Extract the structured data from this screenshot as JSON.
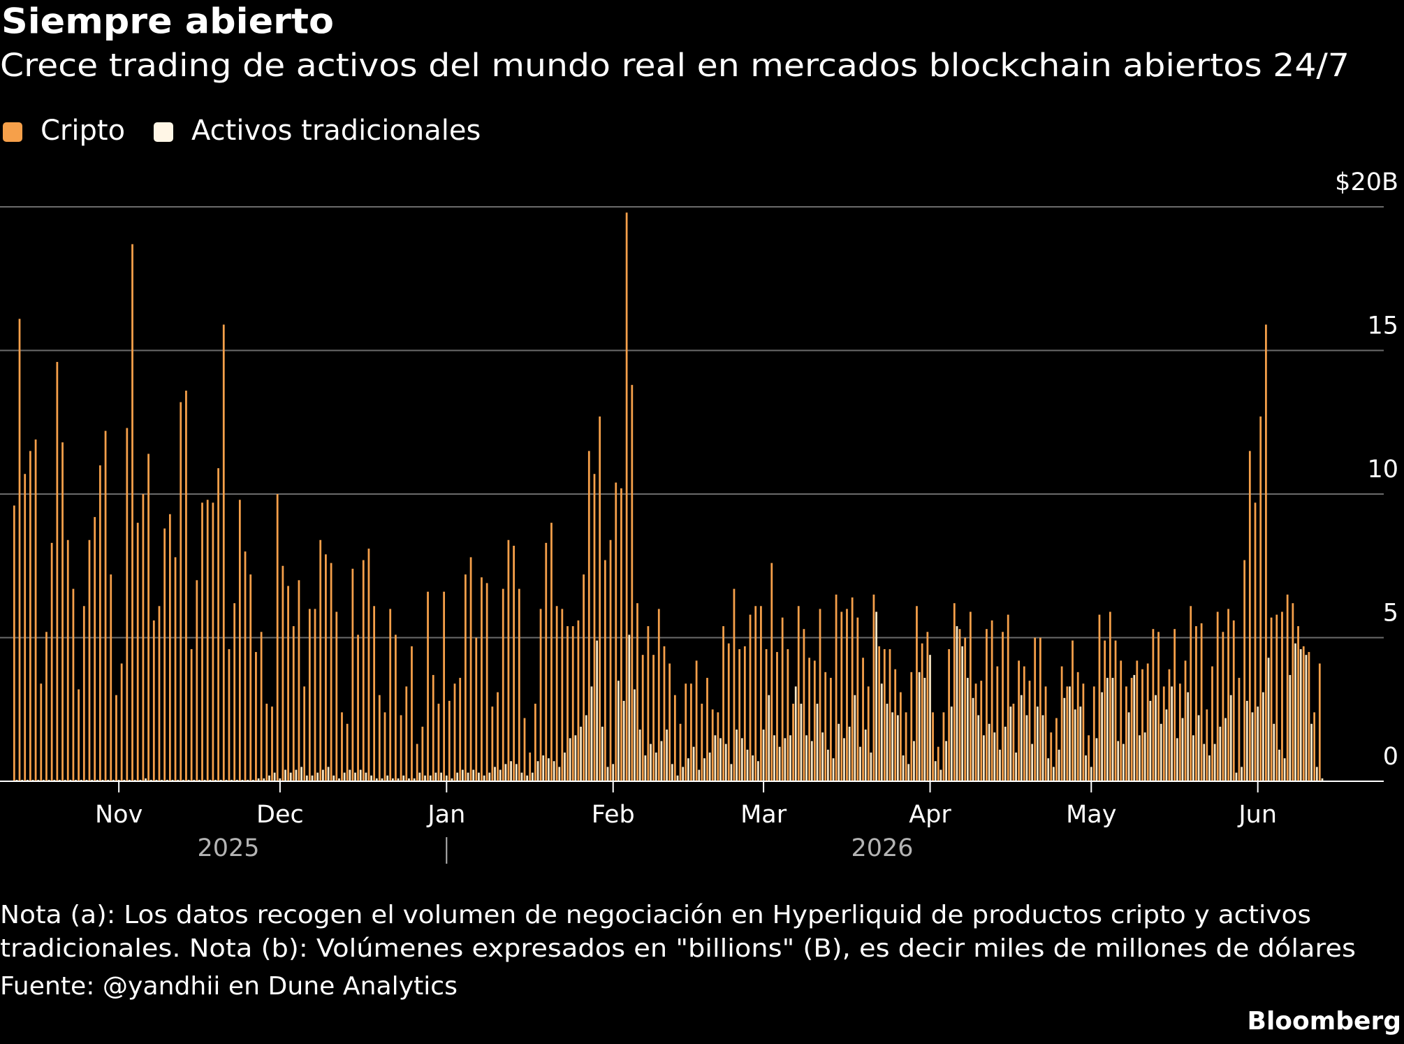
{
  "chart_data": {
    "type": "grouped_bar",
    "title": "Siempre abierto",
    "subtitle": "Crece trading de activos del mundo real en mercados blockchain abiertos 24/7",
    "notes": [
      "Nota (a): Los datos recogen el volumen de negociación en Hyperliquid de productos cripto y activos",
      "tradicionales. Nota (b): Volúmenes expresados en \"billions\" (B), es decir miles de millones de dólares"
    ],
    "source": "Fuente: @yandhii en Dune Analytics",
    "brand": "Bloomberg",
    "year_labels": [
      "2025",
      "2026"
    ],
    "categories": [
      null,
      null,
      null,
      null,
      null,
      null,
      null,
      null,
      null,
      null,
      null,
      null,
      null,
      null,
      null,
      null,
      null,
      null,
      null,
      null,
      null,
      null,
      null,
      null,
      null,
      null,
      null,
      null,
      null,
      null,
      null,
      null,
      null,
      null,
      null,
      null,
      null,
      null,
      null,
      null,
      null,
      null,
      null,
      null,
      null,
      null,
      null,
      null,
      null,
      null,
      null,
      null,
      null,
      null,
      null,
      null,
      null,
      null,
      null,
      null,
      null,
      null,
      null,
      null,
      null,
      null,
      null,
      null,
      null,
      null,
      null,
      null,
      null,
      null,
      null,
      null,
      null,
      null,
      null,
      null,
      null,
      null,
      null,
      null,
      null,
      null,
      null,
      null,
      null,
      null,
      null,
      null,
      null,
      null,
      null,
      null,
      null,
      null,
      null,
      null,
      null,
      null,
      null,
      null,
      null,
      null,
      null,
      null,
      null,
      null,
      null,
      null,
      null,
      null,
      null,
      null,
      null,
      null,
      null,
      null,
      null,
      null,
      null,
      null,
      null,
      null,
      null,
      null,
      null,
      null,
      null,
      null,
      null,
      null,
      null,
      null,
      null,
      null,
      null,
      null,
      null,
      null,
      null,
      null,
      null,
      null,
      null,
      null,
      null,
      null,
      null,
      null,
      null,
      null,
      null,
      null,
      null,
      null,
      null,
      null,
      null,
      null,
      null,
      null,
      null,
      null,
      null,
      null,
      null,
      null,
      null,
      null,
      null,
      null,
      null,
      null,
      null,
      null,
      null,
      null,
      null,
      null,
      null,
      null,
      null,
      null,
      null,
      null,
      null,
      null,
      null,
      null,
      null,
      null,
      null,
      null,
      null,
      null,
      null,
      null,
      null,
      null,
      null,
      null,
      null,
      null,
      null,
      null,
      null,
      null,
      null,
      null,
      null,
      null,
      null,
      null,
      null,
      null,
      null,
      null,
      null,
      null,
      null,
      null,
      null,
      null,
      null,
      null,
      null,
      null,
      null,
      null,
      null,
      null,
      null,
      null,
      null,
      null,
      null,
      null,
      null,
      null,
      null,
      null
    ],
    "xticks": [
      {
        "value": 19,
        "label": "Nov"
      },
      {
        "value": 49,
        "label": "Dec"
      },
      {
        "value": 80,
        "label": "Jan"
      },
      {
        "value": 111,
        "label": "Feb"
      },
      {
        "value": 139,
        "label": "Mar"
      },
      {
        "value": 170,
        "label": "Apr"
      },
      {
        "value": 200,
        "label": "May"
      },
      {
        "value": 231,
        "label": "Jun"
      }
    ],
    "ylim": [
      0,
      20
    ],
    "yticks": [
      0,
      5,
      10,
      15,
      {
        "value": 20,
        "label": "$20B"
      }
    ],
    "grid": true,
    "legend": "top-left",
    "series": [
      {
        "name": "Cripto",
        "color": "#f6a04a",
        "values": [
          9.6,
          16.1,
          10.7,
          11.5,
          11.9,
          3.4,
          5.2,
          8.3,
          14.6,
          11.8,
          8.4,
          6.7,
          3.2,
          6.1,
          8.4,
          9.2,
          11.0,
          12.2,
          7.2,
          3.0,
          4.1,
          12.3,
          18.7,
          9.0,
          10.0,
          11.4,
          5.6,
          6.1,
          8.8,
          9.3,
          7.8,
          13.2,
          13.6,
          4.6,
          7.0,
          9.7,
          9.8,
          9.7,
          10.9,
          15.9,
          4.6,
          6.2,
          9.8,
          8.0,
          7.2,
          4.5,
          5.2,
          2.7,
          2.6,
          10.0,
          7.5,
          6.8,
          5.4,
          7.0,
          3.3,
          6.0,
          6.0,
          8.4,
          7.9,
          7.6,
          5.9,
          2.4,
          2.0,
          7.4,
          5.1,
          7.7,
          8.1,
          6.1,
          3.0,
          2.4,
          6.0,
          5.1,
          2.3,
          3.3,
          4.7,
          1.3,
          1.9,
          6.6,
          3.7,
          2.7,
          6.6,
          2.8,
          3.4,
          3.6,
          7.2,
          7.8,
          5.0,
          7.1,
          6.9,
          2.6,
          3.1,
          6.7,
          8.4,
          8.2,
          6.7,
          2.2,
          1.0,
          2.7,
          6.0,
          8.3,
          9.0,
          6.1,
          6.0,
          5.4,
          5.4,
          5.6,
          7.2,
          11.5,
          10.7,
          12.7,
          7.7,
          8.4,
          10.4,
          10.2,
          19.8,
          13.8,
          6.2,
          4.4,
          5.4,
          4.4,
          6.0,
          4.7,
          4.1,
          3.0,
          2.0,
          3.4,
          3.4,
          4.2,
          2.7,
          3.6,
          2.5,
          2.4,
          5.4,
          4.8,
          6.7,
          4.6,
          4.7,
          5.8,
          6.1,
          6.1,
          4.6,
          7.6,
          4.5,
          5.7,
          4.6,
          2.7,
          6.1,
          5.3,
          4.3,
          4.2,
          6.0,
          3.8,
          3.6,
          6.5,
          5.9,
          6.0,
          6.4,
          5.7,
          4.3,
          3.3,
          6.5,
          4.7,
          4.6,
          4.6,
          3.9,
          3.1,
          2.4,
          3.8,
          6.1,
          4.8,
          5.2,
          2.4,
          1.2,
          2.4,
          4.6,
          6.2,
          5.3,
          5.0,
          5.9,
          3.4,
          3.5,
          5.3,
          5.6,
          4.0,
          5.2,
          5.8,
          2.7,
          4.2,
          4.0,
          3.5,
          5.0,
          5.0,
          3.3,
          1.7,
          2.2,
          4.0,
          3.3,
          4.9,
          3.8,
          3.4,
          1.6,
          3.3,
          5.8,
          4.9,
          5.9,
          4.9,
          4.2,
          3.3,
          3.6,
          4.2,
          3.9,
          4.1,
          5.3,
          5.2,
          3.3,
          3.9,
          5.3,
          3.4,
          4.2,
          6.1,
          5.4,
          5.5,
          2.5,
          4.0,
          5.9,
          5.2,
          6.0,
          5.6,
          3.6,
          7.7,
          11.5,
          9.7,
          12.7,
          15.9,
          5.7,
          5.8,
          5.9,
          6.5,
          6.2,
          5.4,
          4.7,
          4.5,
          2.4,
          4.1
        ]
      },
      {
        "name": "Activos tradicionales",
        "color": "#fbe8c6",
        "values": [
          0.05,
          0.05,
          0.05,
          0.05,
          0.05,
          0.05,
          0.05,
          0.05,
          0.05,
          0.05,
          0.05,
          0.05,
          0.05,
          0.05,
          0.05,
          0.05,
          0.05,
          0.05,
          0.05,
          0.05,
          0.05,
          0.05,
          0.05,
          0.05,
          0.1,
          0.05,
          0.05,
          0.05,
          0.05,
          0.05,
          0.05,
          0.05,
          0.05,
          0.05,
          0.05,
          0.05,
          0.05,
          0.05,
          0.05,
          0.05,
          0.05,
          0.05,
          0.05,
          0.05,
          0.05,
          0.1,
          0.1,
          0.2,
          0.3,
          0.1,
          0.4,
          0.3,
          0.4,
          0.5,
          0.2,
          0.2,
          0.3,
          0.4,
          0.5,
          0.2,
          0.1,
          0.3,
          0.4,
          0.3,
          0.4,
          0.3,
          0.2,
          0.1,
          0.1,
          0.2,
          0.1,
          0.1,
          0.2,
          0.1,
          0.1,
          0.3,
          0.2,
          0.2,
          0.3,
          0.3,
          0.2,
          0.1,
          0.3,
          0.4,
          0.3,
          0.4,
          0.3,
          0.2,
          0.3,
          0.5,
          0.4,
          0.6,
          0.7,
          0.6,
          0.3,
          0.2,
          0.3,
          0.7,
          0.9,
          0.8,
          0.7,
          0.5,
          1.0,
          1.5,
          1.6,
          1.9,
          2.3,
          3.3,
          4.9,
          1.9,
          0.5,
          0.6,
          3.5,
          2.8,
          5.1,
          3.2,
          1.8,
          0.9,
          1.3,
          1.0,
          1.4,
          1.8,
          0.6,
          0.2,
          0.5,
          0.8,
          1.2,
          0.4,
          0.8,
          1.0,
          1.6,
          1.5,
          1.3,
          0.6,
          1.8,
          1.5,
          1.1,
          0.9,
          0.7,
          1.8,
          3.0,
          1.6,
          1.2,
          1.5,
          1.6,
          3.3,
          2.7,
          1.6,
          1.4,
          2.7,
          1.7,
          1.1,
          0.8,
          2.0,
          1.5,
          1.9,
          3.0,
          1.2,
          1.8,
          1.0,
          5.9,
          3.4,
          2.7,
          2.4,
          2.3,
          0.9,
          0.6,
          1.4,
          3.8,
          3.6,
          4.4,
          0.7,
          0.4,
          1.4,
          2.6,
          5.4,
          4.7,
          3.6,
          2.9,
          2.3,
          1.6,
          2.0,
          1.7,
          1.1,
          1.9,
          2.6,
          1.0,
          3.0,
          2.3,
          1.3,
          2.6,
          2.3,
          0.8,
          0.5,
          1.1,
          2.9,
          3.3,
          2.5,
          2.6,
          0.9,
          0.5,
          1.5,
          3.1,
          3.6,
          3.6,
          1.4,
          1.3,
          2.4,
          3.7,
          1.6,
          1.7,
          2.8,
          3.0,
          2.0,
          2.5,
          3.3,
          1.5,
          2.2,
          3.1,
          1.6,
          2.3,
          1.3,
          0.9,
          1.3,
          1.9,
          2.2,
          3.0,
          0.3,
          0.5,
          2.8,
          2.4,
          2.6,
          3.1,
          4.3,
          2.0,
          1.1,
          0.8,
          3.7,
          4.8,
          4.6,
          4.4,
          2.0,
          0.5,
          0.1
        ]
      }
    ]
  }
}
